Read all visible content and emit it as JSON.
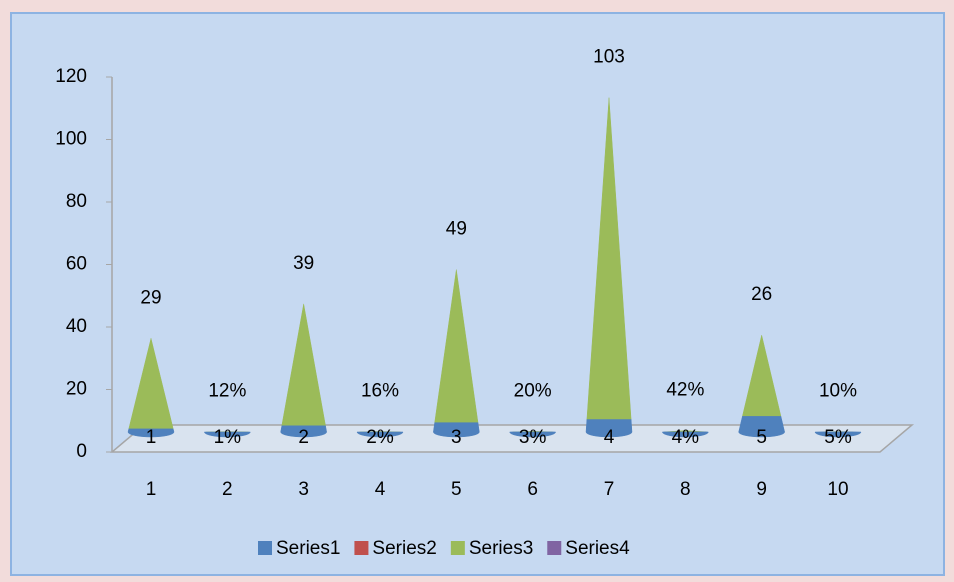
{
  "chart_data": {
    "type": "cone",
    "categories": [
      "1",
      "2",
      "3",
      "4",
      "5",
      "6",
      "7",
      "8",
      "9",
      "10"
    ],
    "series": [
      {
        "name": "Series1",
        "color": "#4f81bd",
        "values": [
          1,
          0.01,
          2,
          0.02,
          3,
          0.03,
          4,
          0.04,
          5,
          0.05
        ],
        "value_labels": [
          "1",
          "1%",
          "2",
          "2%",
          "3",
          "3%",
          "4",
          "4%",
          "5",
          "5%"
        ]
      },
      {
        "name": "Series2",
        "color": "#c0504d",
        "values": [
          null,
          null,
          null,
          null,
          null,
          null,
          null,
          null,
          null,
          null
        ]
      },
      {
        "name": "Series3",
        "color": "#9bbb59",
        "values": [
          29,
          0.12,
          39,
          0.16,
          49,
          0.2,
          103,
          0.42,
          26,
          0.1
        ],
        "value_labels": [
          "29",
          "12%",
          "39",
          "16%",
          "49",
          "20%",
          "103",
          "42%",
          "26",
          "10%"
        ]
      },
      {
        "name": "Series4",
        "color": "#8064a2",
        "values": [
          null,
          null,
          null,
          null,
          null,
          null,
          null,
          null,
          null,
          null
        ]
      }
    ],
    "ylim": [
      0,
      120
    ],
    "yticks": [
      0,
      20,
      40,
      60,
      80,
      100,
      120
    ],
    "stacked": true,
    "legend": "bottom",
    "grid": false
  }
}
